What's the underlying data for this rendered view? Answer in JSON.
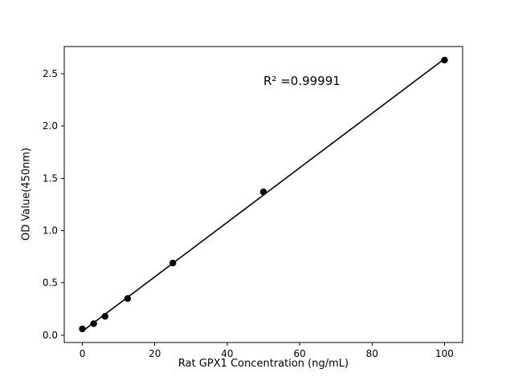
{
  "chart_data": {
    "type": "scatter",
    "title": "",
    "xlabel": "Rat GPX1 Concentration (ng/mL)",
    "ylabel": "OD Value(450nm)",
    "annotation": "R² =0.99991",
    "x": [
      0,
      3.125,
      6.25,
      12.5,
      25,
      50,
      100
    ],
    "y": [
      0.06,
      0.11,
      0.18,
      0.35,
      0.69,
      1.37,
      2.63
    ],
    "fit_line": {
      "x0": 0,
      "y0": 0.037,
      "x1": 100,
      "y1": 2.642
    },
    "xlim": [
      -5,
      105
    ],
    "ylim": [
      -0.07,
      2.76
    ],
    "xticks": [
      0,
      20,
      40,
      60,
      80,
      100
    ],
    "xtick_labels": [
      "0",
      "20",
      "40",
      "60",
      "80",
      "100"
    ],
    "yticks": [
      0.0,
      0.5,
      1.0,
      1.5,
      2.0,
      2.5
    ],
    "ytick_labels": [
      "0.0",
      "0.5",
      "1.0",
      "1.5",
      "2.0",
      "2.5"
    ],
    "grid": false,
    "legend": null,
    "marker_color": "#000000",
    "line_color": "#000000",
    "axis_color": "#000000",
    "background": "#ffffff"
  }
}
